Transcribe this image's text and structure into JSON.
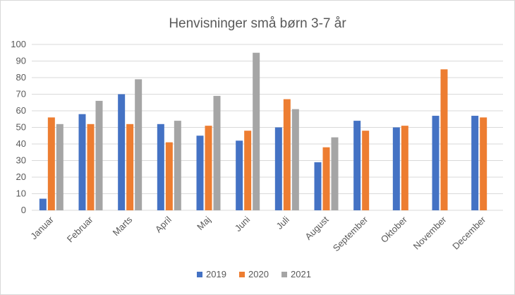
{
  "chart_data": {
    "type": "bar",
    "title": "Henvisninger små børn 3-7 år",
    "categories": [
      "Januar",
      "Februar",
      "Marts",
      "April",
      "Maj",
      "Juni",
      "Juli",
      "August",
      "September",
      "Oktober",
      "November",
      "December"
    ],
    "series": [
      {
        "name": "2019",
        "color": "#4472C4",
        "values": [
          7,
          58,
          70,
          52,
          45,
          42,
          50,
          29,
          54,
          50,
          57,
          57
        ]
      },
      {
        "name": "2020",
        "color": "#ED7D31",
        "values": [
          56,
          52,
          52,
          41,
          51,
          48,
          67,
          38,
          48,
          51,
          85,
          56
        ]
      },
      {
        "name": "2021",
        "color": "#A5A5A5",
        "values": [
          52,
          66,
          79,
          54,
          69,
          95,
          61,
          44,
          null,
          null,
          null,
          null
        ]
      }
    ],
    "ylim": [
      0,
      100
    ],
    "yticks": [
      "0",
      "10",
      "20",
      "30",
      "40",
      "50",
      "60",
      "70",
      "80",
      "90",
      "100"
    ],
    "grid": true,
    "legend_position": "bottom"
  }
}
